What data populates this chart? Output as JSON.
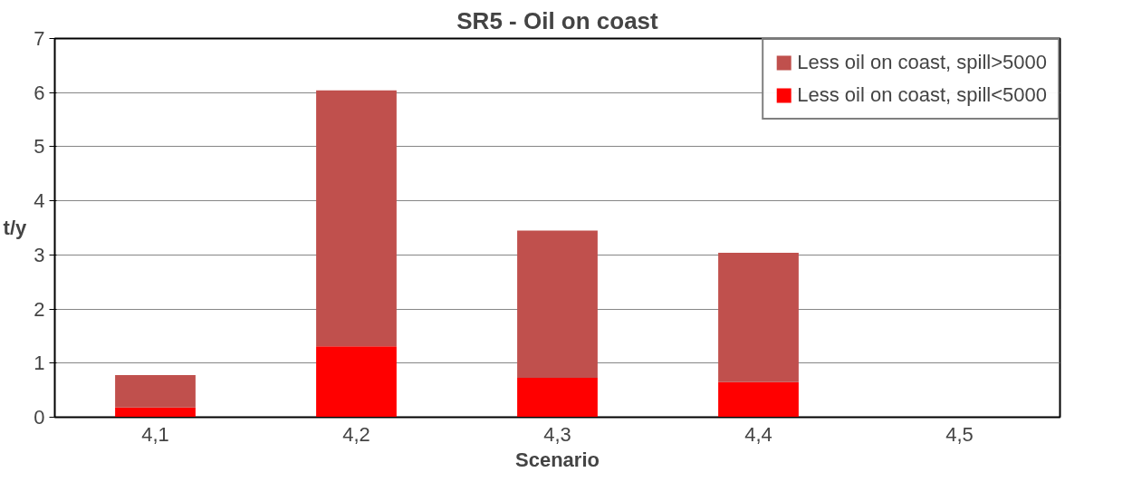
{
  "chart_data": {
    "type": "bar",
    "title": "SR5 - Oil on coast",
    "xlabel": "Scenario",
    "ylabel": "t/y",
    "categories": [
      "4,1",
      "4,2",
      "4,3",
      "4,4",
      "4,5"
    ],
    "stacked": true,
    "series": [
      {
        "name": "Less oil on coast, spill<5000",
        "color": "#ff0000",
        "values": [
          0.18,
          1.31,
          0.73,
          0.65,
          0
        ]
      },
      {
        "name": "Less oil on coast, spill>5000",
        "color": "#c0504d",
        "values": [
          0.6,
          4.73,
          2.72,
          2.39,
          0
        ]
      }
    ],
    "ylim": [
      0,
      7
    ],
    "yticks": [
      0,
      1,
      2,
      3,
      4,
      5,
      6,
      7
    ],
    "grid": "y",
    "legend": "top right"
  }
}
